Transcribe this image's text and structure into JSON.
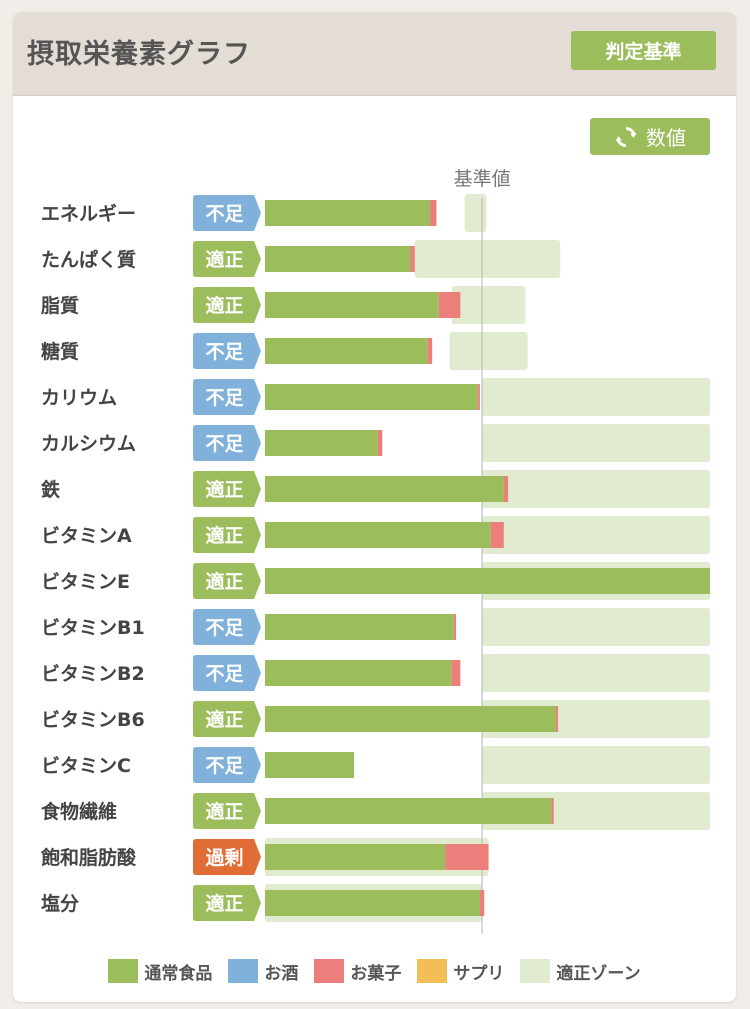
{
  "header": {
    "title": "摂取栄養素グラフ",
    "criteria_button": "判定基準"
  },
  "toolbar": {
    "values_button": "数値",
    "values_icon": "refresh-icon"
  },
  "colors": {
    "food": "#9bbd5c",
    "alcohol": "#7fb1db",
    "snacks": "#ec7f7c",
    "supplement": "#f2be55",
    "zone": "#e0ebcf",
    "status_low": "#7fb1db",
    "status_ok": "#9bbd5c",
    "status_high": "#e06c36"
  },
  "chart_data": {
    "type": "bar",
    "orientation": "horizontal",
    "stacked": true,
    "reference_label": "基準値",
    "unit": "percent of reference value",
    "reference_value": 100,
    "xlim": [
      0,
      205
    ],
    "categories": [
      "エネルギー",
      "たんぱく質",
      "脂質",
      "糖質",
      "カリウム",
      "カルシウム",
      "鉄",
      "ビタミンA",
      "ビタミンE",
      "ビタミンB1",
      "ビタミンB2",
      "ビタミンB6",
      "ビタミンC",
      "食物繊維",
      "飽和脂肪酸",
      "塩分"
    ],
    "status": [
      "不足",
      "適正",
      "適正",
      "不足",
      "不足",
      "不足",
      "適正",
      "適正",
      "適正",
      "不足",
      "不足",
      "適正",
      "不足",
      "適正",
      "過剰",
      "適正"
    ],
    "series": [
      {
        "name": "通常食品",
        "key": "food",
        "values": [
          76,
          67,
          80,
          75,
          98,
          52,
          110,
          104,
          205,
          87,
          86,
          134,
          41,
          132,
          83,
          99
        ]
      },
      {
        "name": "お酒",
        "key": "alcohol",
        "values": [
          0,
          0,
          0,
          0,
          0,
          0,
          0,
          0,
          0,
          0,
          0,
          0,
          0,
          0,
          0,
          0
        ]
      },
      {
        "name": "お菓子",
        "key": "snacks",
        "values": [
          3,
          2,
          10,
          2,
          1,
          2,
          2,
          6,
          0,
          1,
          4,
          1,
          0,
          1,
          20,
          2
        ]
      },
      {
        "name": "サプリ",
        "key": "supplement",
        "values": [
          0,
          0,
          0,
          0,
          0,
          0,
          0,
          0,
          0,
          0,
          0,
          0,
          0,
          0,
          0,
          0
        ]
      }
    ],
    "zone": [
      [
        92,
        102
      ],
      [
        69,
        136
      ],
      [
        86,
        120
      ],
      [
        85,
        121
      ],
      [
        100,
        205
      ],
      [
        100,
        205
      ],
      [
        100,
        205
      ],
      [
        100,
        205
      ],
      [
        100,
        205
      ],
      [
        100,
        205
      ],
      [
        100,
        205
      ],
      [
        100,
        205
      ],
      [
        100,
        205
      ],
      [
        100,
        205
      ],
      [
        0,
        103
      ],
      [
        0,
        100
      ]
    ],
    "legend": [
      "通常食品",
      "お酒",
      "お菓子",
      "サプリ",
      "適正ゾーン"
    ],
    "legend_placement": "bottom"
  }
}
